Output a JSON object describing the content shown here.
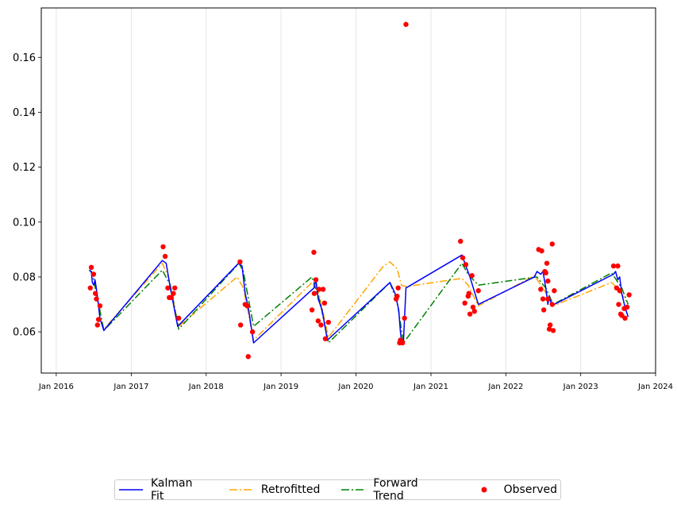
{
  "chart_data": {
    "type": "line",
    "title": "",
    "xlabel": "",
    "ylabel": "",
    "grid": "vertical",
    "legend_position": "bottom-center",
    "x_tick_labels": [
      "Jan 2016",
      "Jan 2017",
      "Jan 2018",
      "Jan 2019",
      "Jan 2020",
      "Jan 2021",
      "Jan 2022",
      "Jan 2023",
      "Jan 2024"
    ],
    "x_ticks": [
      "2016-01-01",
      "2017-01-01",
      "2018-01-01",
      "2019-01-01",
      "2020-01-01",
      "2021-01-01",
      "2022-01-01",
      "2023-01-01",
      "2024-01-01"
    ],
    "xlim": [
      "2015-10-20",
      "2024-01-01"
    ],
    "y_ticks": [
      0.06,
      0.08,
      0.1,
      0.12,
      0.14,
      0.16
    ],
    "y_tick_labels": [
      "0.06",
      "0.08",
      "0.10",
      "0.12",
      "0.14",
      "0.16"
    ],
    "ylim": [
      0.045,
      0.178
    ],
    "series": [
      {
        "name": "Kalman Fit",
        "style": "solid",
        "color": "#0000ff",
        "points": [
          [
            "2016-06-10",
            0.0825
          ],
          [
            "2016-06-20",
            0.082
          ],
          [
            "2016-06-25",
            0.078
          ],
          [
            "2016-07-02",
            0.077
          ],
          [
            "2016-07-08",
            0.079
          ],
          [
            "2016-07-18",
            0.074
          ],
          [
            "2016-08-01",
            0.065
          ],
          [
            "2016-08-20",
            0.0605
          ],
          [
            "2017-06-01",
            0.086
          ],
          [
            "2017-06-20",
            0.085
          ],
          [
            "2017-07-10",
            0.076
          ],
          [
            "2017-08-15",
            0.062
          ],
          [
            "2018-06-08",
            0.085
          ],
          [
            "2018-06-25",
            0.084
          ],
          [
            "2018-07-10",
            0.074
          ],
          [
            "2018-07-25",
            0.069
          ],
          [
            "2018-08-20",
            0.056
          ],
          [
            "2019-06-10",
            0.076
          ],
          [
            "2019-06-20",
            0.079
          ],
          [
            "2019-07-01",
            0.072
          ],
          [
            "2019-07-20",
            0.068
          ],
          [
            "2019-08-15",
            0.057
          ],
          [
            "2020-06-15",
            0.078
          ],
          [
            "2020-07-10",
            0.074
          ],
          [
            "2020-07-28",
            0.068
          ],
          [
            "2020-08-05",
            0.06
          ],
          [
            "2020-08-12",
            0.056
          ],
          [
            "2020-08-20",
            0.057
          ],
          [
            "2020-09-01",
            0.076
          ],
          [
            "2021-06-01",
            0.088
          ],
          [
            "2021-06-20",
            0.084
          ],
          [
            "2021-07-10",
            0.08
          ],
          [
            "2021-08-20",
            0.07
          ],
          [
            "2022-05-20",
            0.08
          ],
          [
            "2022-06-02",
            0.082
          ],
          [
            "2022-06-20",
            0.081
          ],
          [
            "2022-07-01",
            0.082
          ],
          [
            "2022-07-15",
            0.076
          ],
          [
            "2022-07-25",
            0.07
          ],
          [
            "2022-08-01",
            0.073
          ],
          [
            "2022-08-10",
            0.07
          ],
          [
            "2022-08-25",
            0.07
          ],
          [
            "2023-06-10",
            0.081
          ],
          [
            "2023-06-20",
            0.082
          ],
          [
            "2023-07-01",
            0.079
          ],
          [
            "2023-07-10",
            0.08
          ],
          [
            "2023-07-20",
            0.074
          ],
          [
            "2023-08-05",
            0.069
          ],
          [
            "2023-08-20",
            0.0655
          ]
        ]
      },
      {
        "name": "Retrofitted",
        "style": "dashdot",
        "color": "#ffa500",
        "points": [
          [
            "2016-06-10",
            0.0825
          ],
          [
            "2016-06-25",
            0.0815
          ],
          [
            "2016-07-15",
            0.074
          ],
          [
            "2016-08-20",
            0.061
          ],
          [
            "2017-06-01",
            0.085
          ],
          [
            "2017-07-01",
            0.08
          ],
          [
            "2017-08-20",
            0.062
          ],
          [
            "2018-06-01",
            0.08
          ],
          [
            "2018-07-01",
            0.076
          ],
          [
            "2018-08-20",
            0.057
          ],
          [
            "2019-06-01",
            0.078
          ],
          [
            "2019-07-05",
            0.074
          ],
          [
            "2019-08-20",
            0.058
          ],
          [
            "2020-05-15",
            0.084
          ],
          [
            "2020-06-15",
            0.0855
          ],
          [
            "2020-07-20",
            0.083
          ],
          [
            "2020-08-10",
            0.077
          ],
          [
            "2020-09-01",
            0.0765
          ],
          [
            "2021-06-01",
            0.0795
          ],
          [
            "2021-07-01",
            0.077
          ],
          [
            "2021-08-20",
            0.0695
          ],
          [
            "2022-05-20",
            0.0805
          ],
          [
            "2022-07-01",
            0.076
          ],
          [
            "2022-08-20",
            0.0695
          ],
          [
            "2023-06-01",
            0.078
          ],
          [
            "2023-07-10",
            0.075
          ],
          [
            "2023-08-20",
            0.07
          ]
        ]
      },
      {
        "name": "Forward Trend",
        "style": "dashdot",
        "color": "#008000",
        "points": [
          [
            "2016-06-10",
            0.0825
          ],
          [
            "2016-06-25",
            0.0815
          ],
          [
            "2016-07-15",
            0.074
          ],
          [
            "2016-08-20",
            0.0605
          ],
          [
            "2017-06-01",
            0.0825
          ],
          [
            "2017-07-10",
            0.077
          ],
          [
            "2017-08-20",
            0.061
          ],
          [
            "2018-06-10",
            0.085
          ],
          [
            "2018-07-01",
            0.082
          ],
          [
            "2018-08-20",
            0.062
          ],
          [
            "2019-06-01",
            0.08
          ],
          [
            "2019-07-10",
            0.071
          ],
          [
            "2019-08-20",
            0.056
          ],
          [
            "2020-06-15",
            0.078
          ],
          [
            "2020-07-20",
            0.071
          ],
          [
            "2020-08-20",
            0.056
          ],
          [
            "2021-06-01",
            0.085
          ],
          [
            "2021-07-01",
            0.081
          ],
          [
            "2021-08-20",
            0.077
          ],
          [
            "2022-06-01",
            0.08
          ],
          [
            "2022-07-15",
            0.076
          ],
          [
            "2022-08-20",
            0.07
          ],
          [
            "2023-06-01",
            0.0815
          ],
          [
            "2023-07-20",
            0.076
          ],
          [
            "2023-08-20",
            0.07
          ]
        ]
      },
      {
        "name": "Observed",
        "style": "scatter",
        "color": "#ff0000",
        "points": [
          [
            "2016-06-15",
            0.076
          ],
          [
            "2016-06-20",
            0.0835
          ],
          [
            "2016-07-01",
            0.081
          ],
          [
            "2016-07-10",
            0.074
          ],
          [
            "2016-07-15",
            0.072
          ],
          [
            "2016-07-20",
            0.0625
          ],
          [
            "2016-07-25",
            0.0645
          ],
          [
            "2016-08-01",
            0.0695
          ],
          [
            "2017-06-05",
            0.091
          ],
          [
            "2017-06-15",
            0.0875
          ],
          [
            "2017-06-28",
            0.076
          ],
          [
            "2017-07-05",
            0.0725
          ],
          [
            "2017-07-15",
            0.0725
          ],
          [
            "2017-07-25",
            0.074
          ],
          [
            "2017-08-01",
            0.076
          ],
          [
            "2017-08-20",
            0.065
          ],
          [
            "2018-06-15",
            0.0855
          ],
          [
            "2018-06-18",
            0.0625
          ],
          [
            "2018-07-10",
            0.07
          ],
          [
            "2018-07-20",
            0.0695
          ],
          [
            "2018-07-25",
            0.051
          ],
          [
            "2018-08-15",
            0.06
          ],
          [
            "2019-06-01",
            0.068
          ],
          [
            "2019-06-10",
            0.089
          ],
          [
            "2019-06-12",
            0.074
          ],
          [
            "2019-06-20",
            0.079
          ],
          [
            "2019-07-01",
            0.064
          ],
          [
            "2019-07-05",
            0.0755
          ],
          [
            "2019-07-15",
            0.0625
          ],
          [
            "2019-07-25",
            0.0755
          ],
          [
            "2019-08-01",
            0.0705
          ],
          [
            "2019-08-05",
            0.0575
          ],
          [
            "2019-08-20",
            0.0635
          ],
          [
            "2020-07-15",
            0.072
          ],
          [
            "2020-07-20",
            0.073
          ],
          [
            "2020-07-25",
            0.076
          ],
          [
            "2020-08-01",
            0.056
          ],
          [
            "2020-08-05",
            0.057
          ],
          [
            "2020-08-15",
            0.056
          ],
          [
            "2020-08-25",
            0.065
          ],
          [
            "2020-09-01",
            0.172
          ],
          [
            "2021-05-25",
            0.093
          ],
          [
            "2021-06-05",
            0.087
          ],
          [
            "2021-06-15",
            0.0705
          ],
          [
            "2021-06-20",
            0.0845
          ],
          [
            "2021-07-01",
            0.073
          ],
          [
            "2021-07-05",
            0.074
          ],
          [
            "2021-07-10",
            0.0665
          ],
          [
            "2021-07-20",
            0.0805
          ],
          [
            "2021-07-25",
            0.069
          ],
          [
            "2021-08-01",
            0.0675
          ],
          [
            "2021-08-20",
            0.075
          ],
          [
            "2022-06-10",
            0.09
          ],
          [
            "2022-06-20",
            0.0755
          ],
          [
            "2022-06-25",
            0.0895
          ],
          [
            "2022-07-01",
            0.072
          ],
          [
            "2022-07-05",
            0.068
          ],
          [
            "2022-07-10",
            0.082
          ],
          [
            "2022-07-15",
            0.0815
          ],
          [
            "2022-07-20",
            0.085
          ],
          [
            "2022-07-25",
            0.072
          ],
          [
            "2022-07-25",
            0.0785
          ],
          [
            "2022-08-01",
            0.061
          ],
          [
            "2022-08-05",
            0.0625
          ],
          [
            "2022-08-15",
            0.07
          ],
          [
            "2022-08-15",
            0.092
          ],
          [
            "2022-08-20",
            0.0605
          ],
          [
            "2022-08-25",
            0.075
          ],
          [
            "2023-06-10",
            0.084
          ],
          [
            "2023-06-25",
            0.076
          ],
          [
            "2023-07-01",
            0.084
          ],
          [
            "2023-07-05",
            0.07
          ],
          [
            "2023-07-10",
            0.075
          ],
          [
            "2023-07-15",
            0.0665
          ],
          [
            "2023-07-20",
            0.066
          ],
          [
            "2023-08-01",
            0.0685
          ],
          [
            "2023-08-05",
            0.065
          ],
          [
            "2023-08-15",
            0.069
          ],
          [
            "2023-08-25",
            0.0735
          ]
        ]
      }
    ]
  },
  "legend": {
    "items": [
      {
        "label": "Kalman Fit",
        "color": "#0000ff",
        "style": "solid"
      },
      {
        "label": "Retrofitted",
        "color": "#ffa500",
        "style": "dashdot"
      },
      {
        "label": "Forward Trend",
        "color": "#008000",
        "style": "dashdot"
      },
      {
        "label": "Observed",
        "color": "#ff0000",
        "style": "marker"
      }
    ]
  }
}
